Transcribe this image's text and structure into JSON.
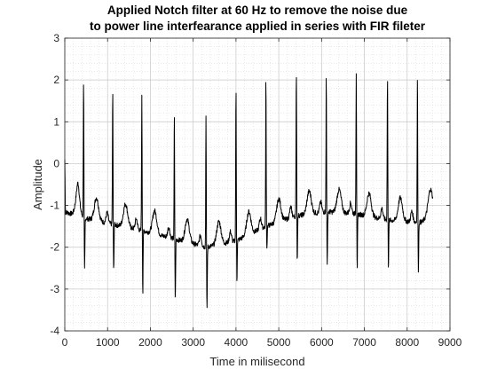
{
  "chart_data": {
    "type": "line",
    "title_line1": "Applied Notch filter at 60 Hz to remove the noise due",
    "title_line2": "to power line interfearance applied in series with FIR fileter",
    "xlabel": "Time in milisecond",
    "ylabel": "Amplitude",
    "xlim": [
      0,
      9000
    ],
    "ylim": [
      -4,
      3
    ],
    "xticks": [
      "0",
      "1000",
      "2000",
      "3000",
      "4000",
      "5000",
      "6000",
      "7000",
      "8000",
      "9000"
    ],
    "yticks": [
      "3",
      "2",
      "1",
      "0",
      "-1",
      "-2",
      "-3",
      "-4"
    ],
    "grid": true,
    "minor_grid": true,
    "line_color": "#000000",
    "series": [
      {
        "beats": [
          {
            "t": 0,
            "r": 0.1,
            "s": -1.2,
            "base": -1.15
          },
          {
            "t": 440,
            "r": 2.0,
            "s": -2.55,
            "base": -1.3
          },
          {
            "t": 1120,
            "r": 1.8,
            "s": -2.6,
            "base": -1.45
          },
          {
            "t": 1800,
            "r": 1.6,
            "s": -3.1,
            "base": -1.6
          },
          {
            "t": 2560,
            "r": 1.25,
            "s": -3.25,
            "base": -1.8
          },
          {
            "t": 3300,
            "r": 1.2,
            "s": -3.5,
            "base": -2.0
          },
          {
            "t": 4000,
            "r": 1.9,
            "s": -2.85,
            "base": -1.85
          },
          {
            "t": 4700,
            "r": 2.1,
            "s": -2.05,
            "base": -1.5
          },
          {
            "t": 5410,
            "r": 2.3,
            "s": -2.35,
            "base": -1.25
          },
          {
            "t": 6110,
            "r": 2.2,
            "s": -2.45,
            "base": -1.15
          },
          {
            "t": 6810,
            "r": 2.2,
            "s": -2.6,
            "base": -1.2
          },
          {
            "t": 7540,
            "r": 2.15,
            "s": -2.5,
            "base": -1.35
          },
          {
            "t": 8240,
            "r": 2.2,
            "s": -2.55,
            "base": -1.4
          }
        ],
        "end_t": 8600,
        "end_value": -0.9
      }
    ]
  }
}
